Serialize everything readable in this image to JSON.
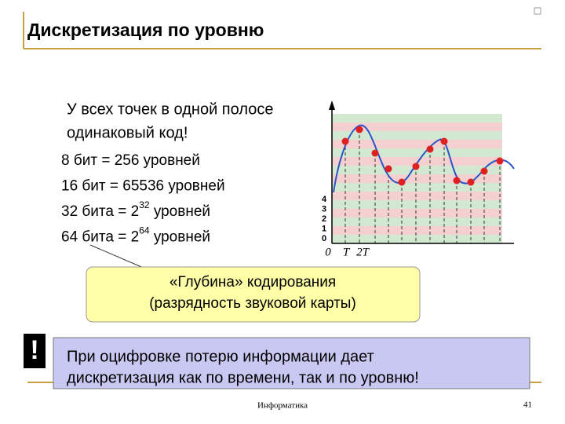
{
  "title": "Дискретизация по уровню",
  "intro": [
    "У всех точек в одной полосе",
    "одинаковый код!"
  ],
  "levels": [
    {
      "text": "8 бит = 256 уровней"
    },
    {
      "text": "16 бит = 65536 уровней"
    },
    {
      "base": "32 бита = 2",
      "exp": "32",
      "rest": " уровней"
    },
    {
      "base": "64 бита = 2",
      "exp": "64",
      "rest": " уровней"
    }
  ],
  "diagram": {
    "level_labels": [
      "4",
      "3",
      "2",
      "1",
      "0"
    ],
    "time_labels": [
      "0",
      "T",
      "2T"
    ]
  },
  "callout": {
    "lines": [
      "«Глубина» кодирования",
      "(разрядность звуковой карты)"
    ]
  },
  "note": {
    "mark": "!",
    "lines": [
      "При оцифровке потерю информации дает",
      "дискретизация как по времени, так и по уровню!"
    ]
  },
  "footer": {
    "center": "Информатика",
    "page": "41"
  }
}
